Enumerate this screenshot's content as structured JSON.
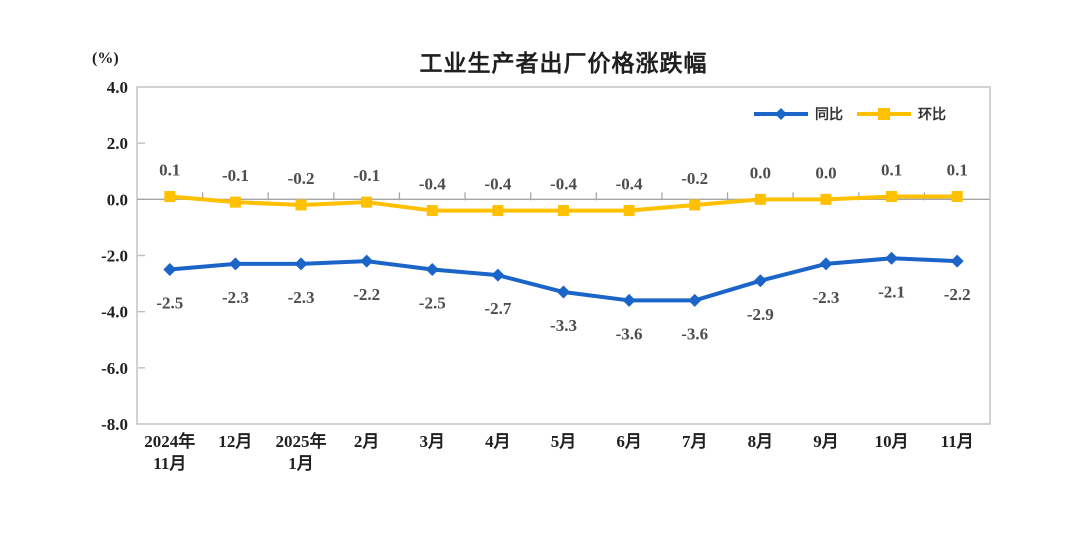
{
  "page": {
    "background_color": "#ffffff"
  },
  "chart_data": {
    "type": "line",
    "title": "工业生产者出厂价格涨跌幅",
    "y_unit_label": "(%)",
    "categories": [
      "2024年\n11月",
      "12月",
      "2025年\n1月",
      "2月",
      "3月",
      "4月",
      "5月",
      "6月",
      "7月",
      "8月",
      "9月",
      "10月",
      "11月"
    ],
    "series": [
      {
        "name": "同比",
        "color": "#1B64C8",
        "marker": "diamond",
        "label_position": "below",
        "values": [
          -2.5,
          -2.3,
          -2.3,
          -2.2,
          -2.5,
          -2.7,
          -3.3,
          -3.6,
          -3.6,
          -2.9,
          -2.3,
          -2.1,
          -2.2
        ]
      },
      {
        "name": "环比",
        "color": "#FFC000",
        "marker": "square",
        "label_position": "above",
        "values": [
          0.1,
          -0.1,
          -0.2,
          -0.1,
          -0.4,
          -0.4,
          -0.4,
          -0.4,
          -0.2,
          0.0,
          0.0,
          0.1,
          0.1
        ]
      }
    ],
    "ylim": [
      -8.0,
      4.0
    ],
    "y_tick_step": 2.0,
    "y_tick_labels": [
      "4.0",
      "2.0",
      "0.0",
      "-2.0",
      "-4.0",
      "-6.0",
      "-8.0"
    ],
    "grid": false,
    "legend_position": "top-right-inside",
    "colors": {
      "plot_border": "#bfbfbf",
      "zero_axis": "#a6a6a6",
      "axis_text": "#1f1f1f",
      "data_label_text": "#4d4d4d"
    }
  }
}
